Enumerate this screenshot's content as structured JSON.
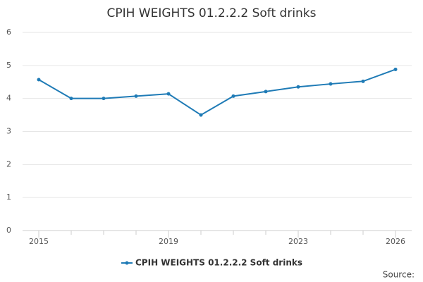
{
  "chart_data": {
    "type": "line",
    "title": "CPIH WEIGHTS 01.2.2.2 Soft drinks",
    "x": [
      2015,
      2016,
      2017,
      2018,
      2019,
      2020,
      2021,
      2022,
      2023,
      2024,
      2025,
      2026
    ],
    "series": [
      {
        "name": "CPIH WEIGHTS 01.2.2.2 Soft drinks",
        "color": "#1f7bb6",
        "values": [
          4.57,
          4.0,
          4.0,
          4.07,
          4.14,
          3.5,
          4.07,
          4.21,
          4.35,
          4.44,
          4.52,
          4.88
        ]
      }
    ],
    "xlim": [
      2014.5,
      2026.5
    ],
    "xticks": [
      2015,
      2019,
      2023,
      2026
    ],
    "ylim": [
      0,
      6
    ],
    "yticks": [
      0,
      1,
      2,
      3,
      4,
      5,
      6
    ],
    "grid": true,
    "legend": "bottom",
    "source": "Source:"
  }
}
